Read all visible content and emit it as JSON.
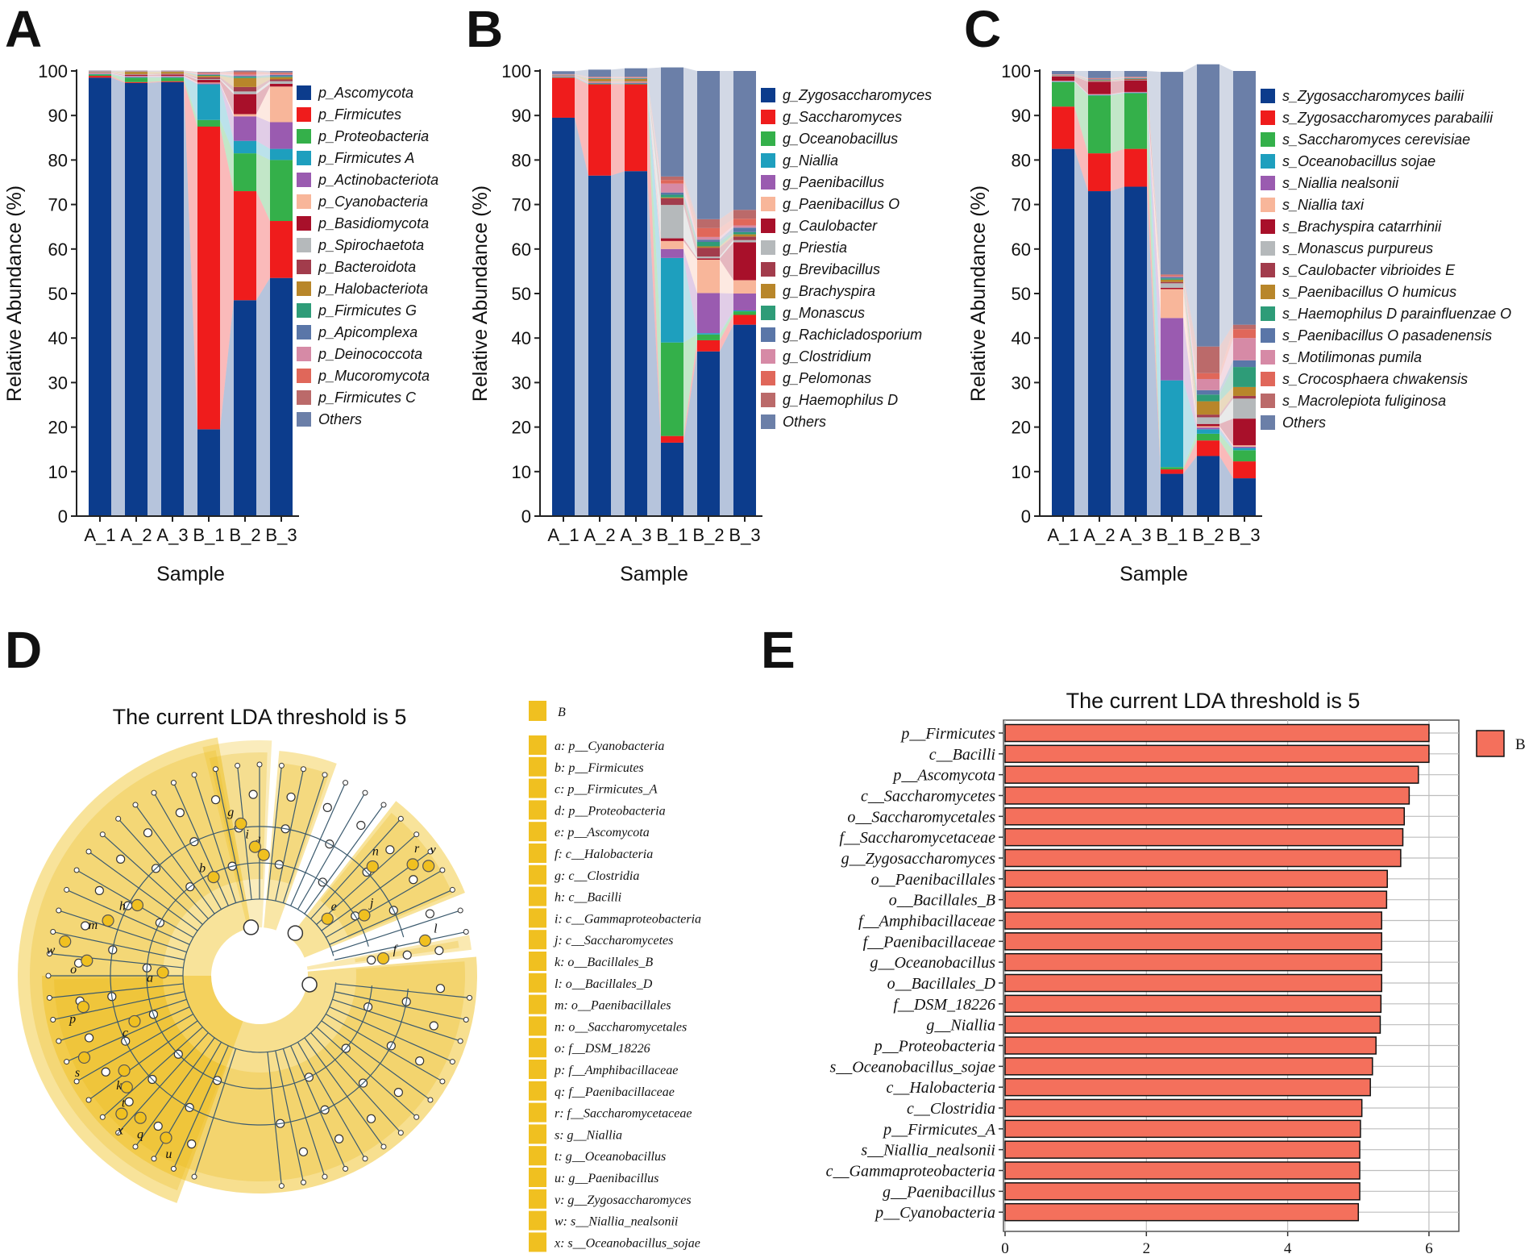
{
  "panels": {
    "A": "A",
    "B": "B",
    "C": "C",
    "D": "D",
    "E": "E"
  },
  "chart_data": [
    {
      "panel": "A",
      "type": "bar",
      "stacked": true,
      "xlabel": "Sample",
      "ylabel": "Relative Abundance (%)",
      "ylim": [
        0,
        100
      ],
      "yticks": [
        0,
        10,
        20,
        30,
        40,
        50,
        60,
        70,
        80,
        90,
        100
      ],
      "categories": [
        "A_1",
        "A_2",
        "A_3",
        "B_1",
        "B_2",
        "B_3"
      ],
      "series": [
        {
          "name": "p_Ascomycota",
          "color": "#0c3c8c",
          "values": [
            98.5,
            97.3,
            97.5,
            19.5,
            48.5,
            53.5
          ]
        },
        {
          "name": "p_Firmicutes",
          "color": "#ef1c1c",
          "values": [
            0.4,
            0.2,
            0.2,
            68.0,
            24.5,
            12.8
          ]
        },
        {
          "name": "p_Proteobacteria",
          "color": "#34b04a",
          "values": [
            0.3,
            1.0,
            0.8,
            1.5,
            8.5,
            13.7
          ]
        },
        {
          "name": "p_Firmicutes A",
          "color": "#1e9fbe",
          "values": [
            0.1,
            0.1,
            0.1,
            8.0,
            2.8,
            2.5
          ]
        },
        {
          "name": "p_Actinobacteriota",
          "color": "#9a5bb0",
          "values": [
            0.1,
            0.2,
            0.2,
            0.2,
            5.5,
            6.0
          ]
        },
        {
          "name": "p_Cyanobacteria",
          "color": "#f8b69a",
          "values": [
            0.1,
            0.1,
            0.1,
            0.2,
            0.5,
            8.0
          ]
        },
        {
          "name": "p_Basidiomycota",
          "color": "#a8102a",
          "values": [
            0.1,
            0.2,
            0.3,
            0.6,
            4.5,
            0.6
          ]
        },
        {
          "name": "p_Spirochaetota",
          "color": "#b5b9bb",
          "values": [
            0.1,
            0.1,
            0.1,
            0.2,
            0.6,
            0.6
          ]
        },
        {
          "name": "p_Bacteroidota",
          "color": "#a23c4c",
          "values": [
            0.05,
            0.1,
            0.1,
            0.4,
            1.0,
            0.4
          ]
        },
        {
          "name": "p_Halobacteriota",
          "color": "#b8862a",
          "values": [
            0.05,
            0.5,
            0.4,
            0.3,
            2.0,
            0.5
          ]
        },
        {
          "name": "p_Firmicutes G",
          "color": "#2e9c78",
          "values": [
            0.05,
            0.05,
            0.05,
            0.2,
            0.3,
            0.2
          ]
        },
        {
          "name": "p_Apicomplexa",
          "color": "#5a76a8",
          "values": [
            0.05,
            0.05,
            0.05,
            0.1,
            0.2,
            0.3
          ]
        },
        {
          "name": "p_Deinococcota",
          "color": "#d68aa6",
          "values": [
            0.05,
            0.05,
            0.05,
            0.2,
            0.3,
            0.2
          ]
        },
        {
          "name": "p_Mucoromycota",
          "color": "#e0675a",
          "values": [
            0.05,
            0.05,
            0.05,
            0.2,
            0.4,
            0.2
          ]
        },
        {
          "name": "p_Firmicutes C",
          "color": "#bb6a6a",
          "values": [
            0.05,
            0.05,
            0.05,
            0.1,
            0.3,
            0.2
          ]
        },
        {
          "name": "Others",
          "color": "#6b7fa8",
          "values": [
            0.05,
            0.05,
            0.05,
            0.1,
            0.2,
            0.3
          ]
        }
      ]
    },
    {
      "panel": "B",
      "type": "bar",
      "stacked": true,
      "xlabel": "Sample",
      "ylabel": "Relative Abundance (%)",
      "ylim": [
        0,
        100
      ],
      "yticks": [
        0,
        10,
        20,
        30,
        40,
        50,
        60,
        70,
        80,
        90,
        100
      ],
      "categories": [
        "A_1",
        "A_2",
        "A_3",
        "B_1",
        "B_2",
        "B_3"
      ],
      "series": [
        {
          "name": "g_Zygosaccharomyces",
          "color": "#0c3c8c",
          "values": [
            89.5,
            76.5,
            77.5,
            16.5,
            37.0,
            43.0
          ]
        },
        {
          "name": "g_Saccharomyces",
          "color": "#ef1c1c",
          "values": [
            9.0,
            20.5,
            19.5,
            1.5,
            2.5,
            2.2
          ]
        },
        {
          "name": "g_Oceanobacillus",
          "color": "#34b04a",
          "values": [
            0.1,
            0.1,
            0.1,
            21.0,
            1.3,
            0.8
          ]
        },
        {
          "name": "g_Niallia",
          "color": "#1e9fbe",
          "values": [
            0.1,
            0.1,
            0.1,
            19.0,
            0.3,
            0.2
          ]
        },
        {
          "name": "g_Paenibacillus",
          "color": "#9a5bb0",
          "values": [
            0.1,
            0.1,
            0.1,
            2.0,
            9.0,
            3.8
          ]
        },
        {
          "name": "g_Paenibacillus O",
          "color": "#f8b69a",
          "values": [
            0.05,
            0.1,
            0.1,
            1.8,
            7.5,
            3.0
          ]
        },
        {
          "name": "g_Caulobacter",
          "color": "#a8102a",
          "values": [
            0.05,
            0.1,
            0.1,
            0.6,
            0.3,
            8.5
          ]
        },
        {
          "name": "g_Priestia",
          "color": "#b5b9bb",
          "values": [
            0.05,
            0.1,
            0.1,
            7.5,
            0.4,
            0.5
          ]
        },
        {
          "name": "g_Brevibacillus",
          "color": "#a23c4c",
          "values": [
            0.05,
            0.1,
            0.1,
            1.5,
            2.0,
            0.8
          ]
        },
        {
          "name": "g_Brachyspira",
          "color": "#b8862a",
          "values": [
            0.05,
            0.5,
            0.5,
            0.2,
            0.3,
            0.5
          ]
        },
        {
          "name": "g_Monascus",
          "color": "#2e9c78",
          "values": [
            0.05,
            0.1,
            0.1,
            0.6,
            1.0,
            0.5
          ]
        },
        {
          "name": "g_Rachicladosporium",
          "color": "#5a76a8",
          "values": [
            0.05,
            0.1,
            0.1,
            0.5,
            0.5,
            1.0
          ]
        },
        {
          "name": "g_Clostridium",
          "color": "#d68aa6",
          "values": [
            0.05,
            0.1,
            0.1,
            2.0,
            0.6,
            0.5
          ]
        },
        {
          "name": "g_Pelomonas",
          "color": "#e0675a",
          "values": [
            0.05,
            0.1,
            0.1,
            0.8,
            2.0,
            1.5
          ]
        },
        {
          "name": "g_Haemophilus D",
          "color": "#bb6a6a",
          "values": [
            0.05,
            0.1,
            0.1,
            0.8,
            2.0,
            2.0
          ]
        },
        {
          "name": "Others",
          "color": "#6b7fa8",
          "values": [
            0.65,
            1.6,
            1.9,
            24.5,
            33.3,
            31.2
          ]
        }
      ]
    },
    {
      "panel": "C",
      "type": "bar",
      "stacked": true,
      "xlabel": "Sample",
      "ylabel": "Relative Abundance (%)",
      "ylim": [
        0,
        100
      ],
      "yticks": [
        0,
        10,
        20,
        30,
        40,
        50,
        60,
        70,
        80,
        90,
        100
      ],
      "categories": [
        "A_1",
        "A_2",
        "A_3",
        "B_1",
        "B_2",
        "B_3"
      ],
      "series": [
        {
          "name": "s_Zygosaccharomyces bailii",
          "color": "#0c3c8c",
          "values": [
            82.5,
            73.0,
            74.0,
            9.5,
            13.5,
            8.5
          ]
        },
        {
          "name": "s_Zygosaccharomyces parabailii",
          "color": "#ef1c1c",
          "values": [
            9.5,
            8.5,
            8.5,
            1.0,
            3.5,
            3.8
          ]
        },
        {
          "name": "s_Saccharomyces cerevisiae",
          "color": "#34b04a",
          "values": [
            5.5,
            13.0,
            12.5,
            0.5,
            1.5,
            2.5
          ]
        },
        {
          "name": "s_Oceanobacillus sojae",
          "color": "#1e9fbe",
          "values": [
            0.1,
            0.1,
            0.1,
            19.5,
            1.0,
            0.5
          ]
        },
        {
          "name": "s_Niallia nealsonii",
          "color": "#9a5bb0",
          "values": [
            0.1,
            0.1,
            0.1,
            14.0,
            0.4,
            0.3
          ]
        },
        {
          "name": "s_Niallia taxi",
          "color": "#f8b69a",
          "values": [
            0.1,
            0.1,
            0.1,
            6.5,
            0.3,
            0.3
          ]
        },
        {
          "name": "s_Brachyspira catarrhinii",
          "color": "#a8102a",
          "values": [
            1.0,
            2.8,
            2.6,
            0.3,
            0.5,
            6.0
          ]
        },
        {
          "name": "s_Monascus purpureus",
          "color": "#b5b9bb",
          "values": [
            0.1,
            0.1,
            0.1,
            1.0,
            1.5,
            4.5
          ]
        },
        {
          "name": "s_Caulobacter vibrioides E",
          "color": "#a23c4c",
          "values": [
            0.05,
            0.1,
            0.1,
            0.3,
            0.6,
            0.6
          ]
        },
        {
          "name": "s_Paenibacillus O humicus",
          "color": "#b8862a",
          "values": [
            0.05,
            0.1,
            0.1,
            0.5,
            3.0,
            2.0
          ]
        },
        {
          "name": "s_Haemophilus D parainfluenzae O",
          "color": "#2e9c78",
          "values": [
            0.05,
            0.1,
            0.1,
            0.3,
            1.5,
            4.5
          ]
        },
        {
          "name": "s_Paenibacillus O pasadenensis",
          "color": "#5a76a8",
          "values": [
            0.05,
            0.1,
            0.1,
            0.3,
            1.0,
            1.5
          ]
        },
        {
          "name": "s_Motilimonas pumila",
          "color": "#d68aa6",
          "values": [
            0.05,
            0.1,
            0.1,
            0.2,
            2.5,
            5.0
          ]
        },
        {
          "name": "s_Crocosphaera chwakensis",
          "color": "#e0675a",
          "values": [
            0.05,
            0.1,
            0.1,
            0.2,
            1.3,
            2.0
          ]
        },
        {
          "name": "s_Macrolepiota fuliginosa",
          "color": "#bb6a6a",
          "values": [
            0.05,
            0.1,
            0.1,
            0.2,
            6.0,
            1.0
          ]
        },
        {
          "name": "Others",
          "color": "#6b7fa8",
          "values": [
            0.75,
            1.6,
            1.3,
            45.5,
            63.4,
            57.0
          ]
        }
      ]
    },
    {
      "panel": "D",
      "type": "cladogram",
      "title": "The current LDA threshold is 5",
      "group_legend": {
        "label": "B",
        "color": "#f0c020"
      },
      "node_letters": [
        "a",
        "b",
        "c",
        "d",
        "e",
        "f",
        "g",
        "h",
        "i",
        "j",
        "k",
        "l",
        "m",
        "n",
        "o",
        "p",
        "q",
        "r",
        "s",
        "t",
        "u",
        "v",
        "w",
        "x"
      ],
      "taxa": [
        {
          "key": "a",
          "label": "a: p__Cyanobacteria"
        },
        {
          "key": "b",
          "label": "b: p__Firmicutes"
        },
        {
          "key": "c",
          "label": "c: p__Firmicutes_A"
        },
        {
          "key": "d",
          "label": "d: p__Proteobacteria"
        },
        {
          "key": "e",
          "label": "e: p__Ascomycota"
        },
        {
          "key": "f",
          "label": "f: c__Halobacteria"
        },
        {
          "key": "g",
          "label": "g: c__Clostridia"
        },
        {
          "key": "h",
          "label": "h: c__Bacilli"
        },
        {
          "key": "i",
          "label": "i: c__Gammaproteobacteria"
        },
        {
          "key": "j",
          "label": "j: c__Saccharomycetes"
        },
        {
          "key": "k",
          "label": "k: o__Bacillales_B"
        },
        {
          "key": "l",
          "label": "l: o__Bacillales_D"
        },
        {
          "key": "m",
          "label": "m: o__Paenibacillales"
        },
        {
          "key": "n",
          "label": "n: o__Saccharomycetales"
        },
        {
          "key": "o",
          "label": "o: f__DSM_18226"
        },
        {
          "key": "p",
          "label": "p: f__Amphibacillaceae"
        },
        {
          "key": "q",
          "label": "q: f__Paenibacillaceae"
        },
        {
          "key": "r",
          "label": "r: f__Saccharomycetaceae"
        },
        {
          "key": "s",
          "label": "s: g__Niallia"
        },
        {
          "key": "t",
          "label": "t: g__Oceanobacillus"
        },
        {
          "key": "u",
          "label": "u: g__Paenibacillus"
        },
        {
          "key": "v",
          "label": "v: g__Zygosaccharomyces"
        },
        {
          "key": "w",
          "label": "w: s__Niallia_nealsonii"
        },
        {
          "key": "x",
          "label": "x: s__Oceanobacillus_sojae"
        }
      ]
    },
    {
      "panel": "E",
      "type": "bar",
      "orientation": "horizontal",
      "title": "The current LDA threshold is 5",
      "legend": {
        "label": "B",
        "color": "#f4705c"
      },
      "xlim": [
        0,
        6.4
      ],
      "xticks": [
        0,
        2,
        4,
        6
      ],
      "categories": [
        "p__Firmicutes",
        "c__Bacilli",
        "p__Ascomycota",
        "c__Saccharomycetes",
        "o__Saccharomycetales",
        "f__Saccharomycetaceae",
        "g__Zygosaccharomyces",
        "o__Paenibacillales",
        "o__Bacillales_B",
        "f__Amphibacillaceae",
        "f__Paenibacillaceae",
        "g__Oceanobacillus",
        "o__Bacillales_D",
        "f__DSM_18226",
        "g__Niallia",
        "p__Proteobacteria",
        "s__Oceanobacillus_sojae",
        "c__Halobacteria",
        "c__Clostridia",
        "p__Firmicutes_A",
        "s__Niallia_nealsonii",
        "c__Gammaproteobacteria",
        "g__Paenibacillus",
        "p__Cyanobacteria"
      ],
      "values": [
        6.0,
        6.0,
        5.85,
        5.72,
        5.65,
        5.63,
        5.6,
        5.41,
        5.4,
        5.33,
        5.33,
        5.33,
        5.33,
        5.32,
        5.31,
        5.25,
        5.2,
        5.17,
        5.05,
        5.03,
        5.02,
        5.02,
        5.02,
        5.0
      ]
    }
  ]
}
